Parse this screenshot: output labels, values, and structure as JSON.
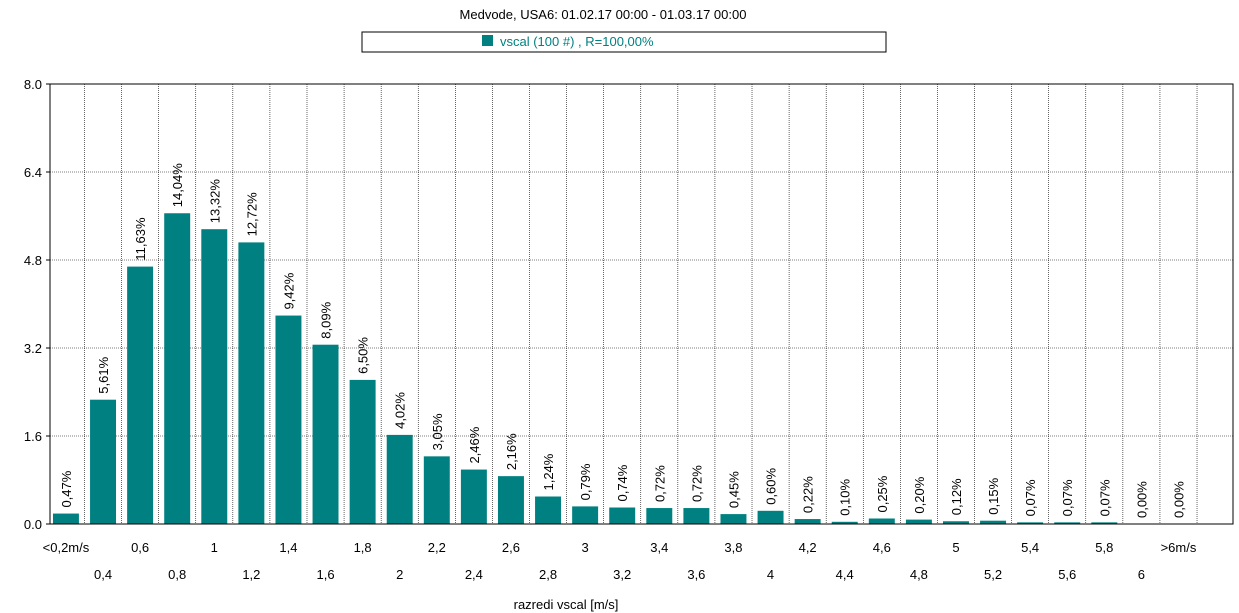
{
  "chart_data": {
    "type": "bar",
    "title": "Medvode, USA6: 01.02.17 00:00 - 01.03.17 00:00",
    "xlabel": "razredi vscal [m/s]",
    "ylabel": "",
    "ylim": [
      0,
      8.0
    ],
    "yticks": [
      "0.0",
      "1.6",
      "3.2",
      "4.8",
      "6.4",
      "8.0"
    ],
    "grid": true,
    "legend_position": "top-center",
    "series": [
      {
        "name": "vscal (100 #) , R=100,00%",
        "color": "#008080",
        "categories": [
          "<0,2m/s",
          "0,4",
          "0,6",
          "0,8",
          "1",
          "1,2",
          "1,4",
          "1,6",
          "1,8",
          "2",
          "2,2",
          "2,4",
          "2,6",
          "2,8",
          "3",
          "3,2",
          "3,4",
          "3,6",
          "3,8",
          "4",
          "4,2",
          "4,4",
          "4,6",
          "4,8",
          "5",
          "5,2",
          "5,4",
          "5,6",
          "5,8",
          "6",
          ">6m/s"
        ],
        "values": [
          0.19,
          2.26,
          4.68,
          5.65,
          5.36,
          5.12,
          3.79,
          3.26,
          2.62,
          1.62,
          1.23,
          0.99,
          0.87,
          0.5,
          0.32,
          0.3,
          0.29,
          0.29,
          0.18,
          0.24,
          0.09,
          0.04,
          0.1,
          0.08,
          0.05,
          0.06,
          0.03,
          0.03,
          0.03,
          0.0,
          0.0
        ],
        "labels": [
          "0,47%",
          "5,61%",
          "11,63%",
          "14,04%",
          "13,32%",
          "12,72%",
          "9,42%",
          "8,09%",
          "6,50%",
          "4,02%",
          "3,05%",
          "2,46%",
          "2,16%",
          "1,24%",
          "0,79%",
          "0,74%",
          "0,72%",
          "0,72%",
          "0,45%",
          "0,60%",
          "0,22%",
          "0,10%",
          "0,25%",
          "0,20%",
          "0,12%",
          "0,15%",
          "0,07%",
          "0,07%",
          "0,07%",
          "0,00%",
          "0,00%"
        ]
      }
    ]
  }
}
